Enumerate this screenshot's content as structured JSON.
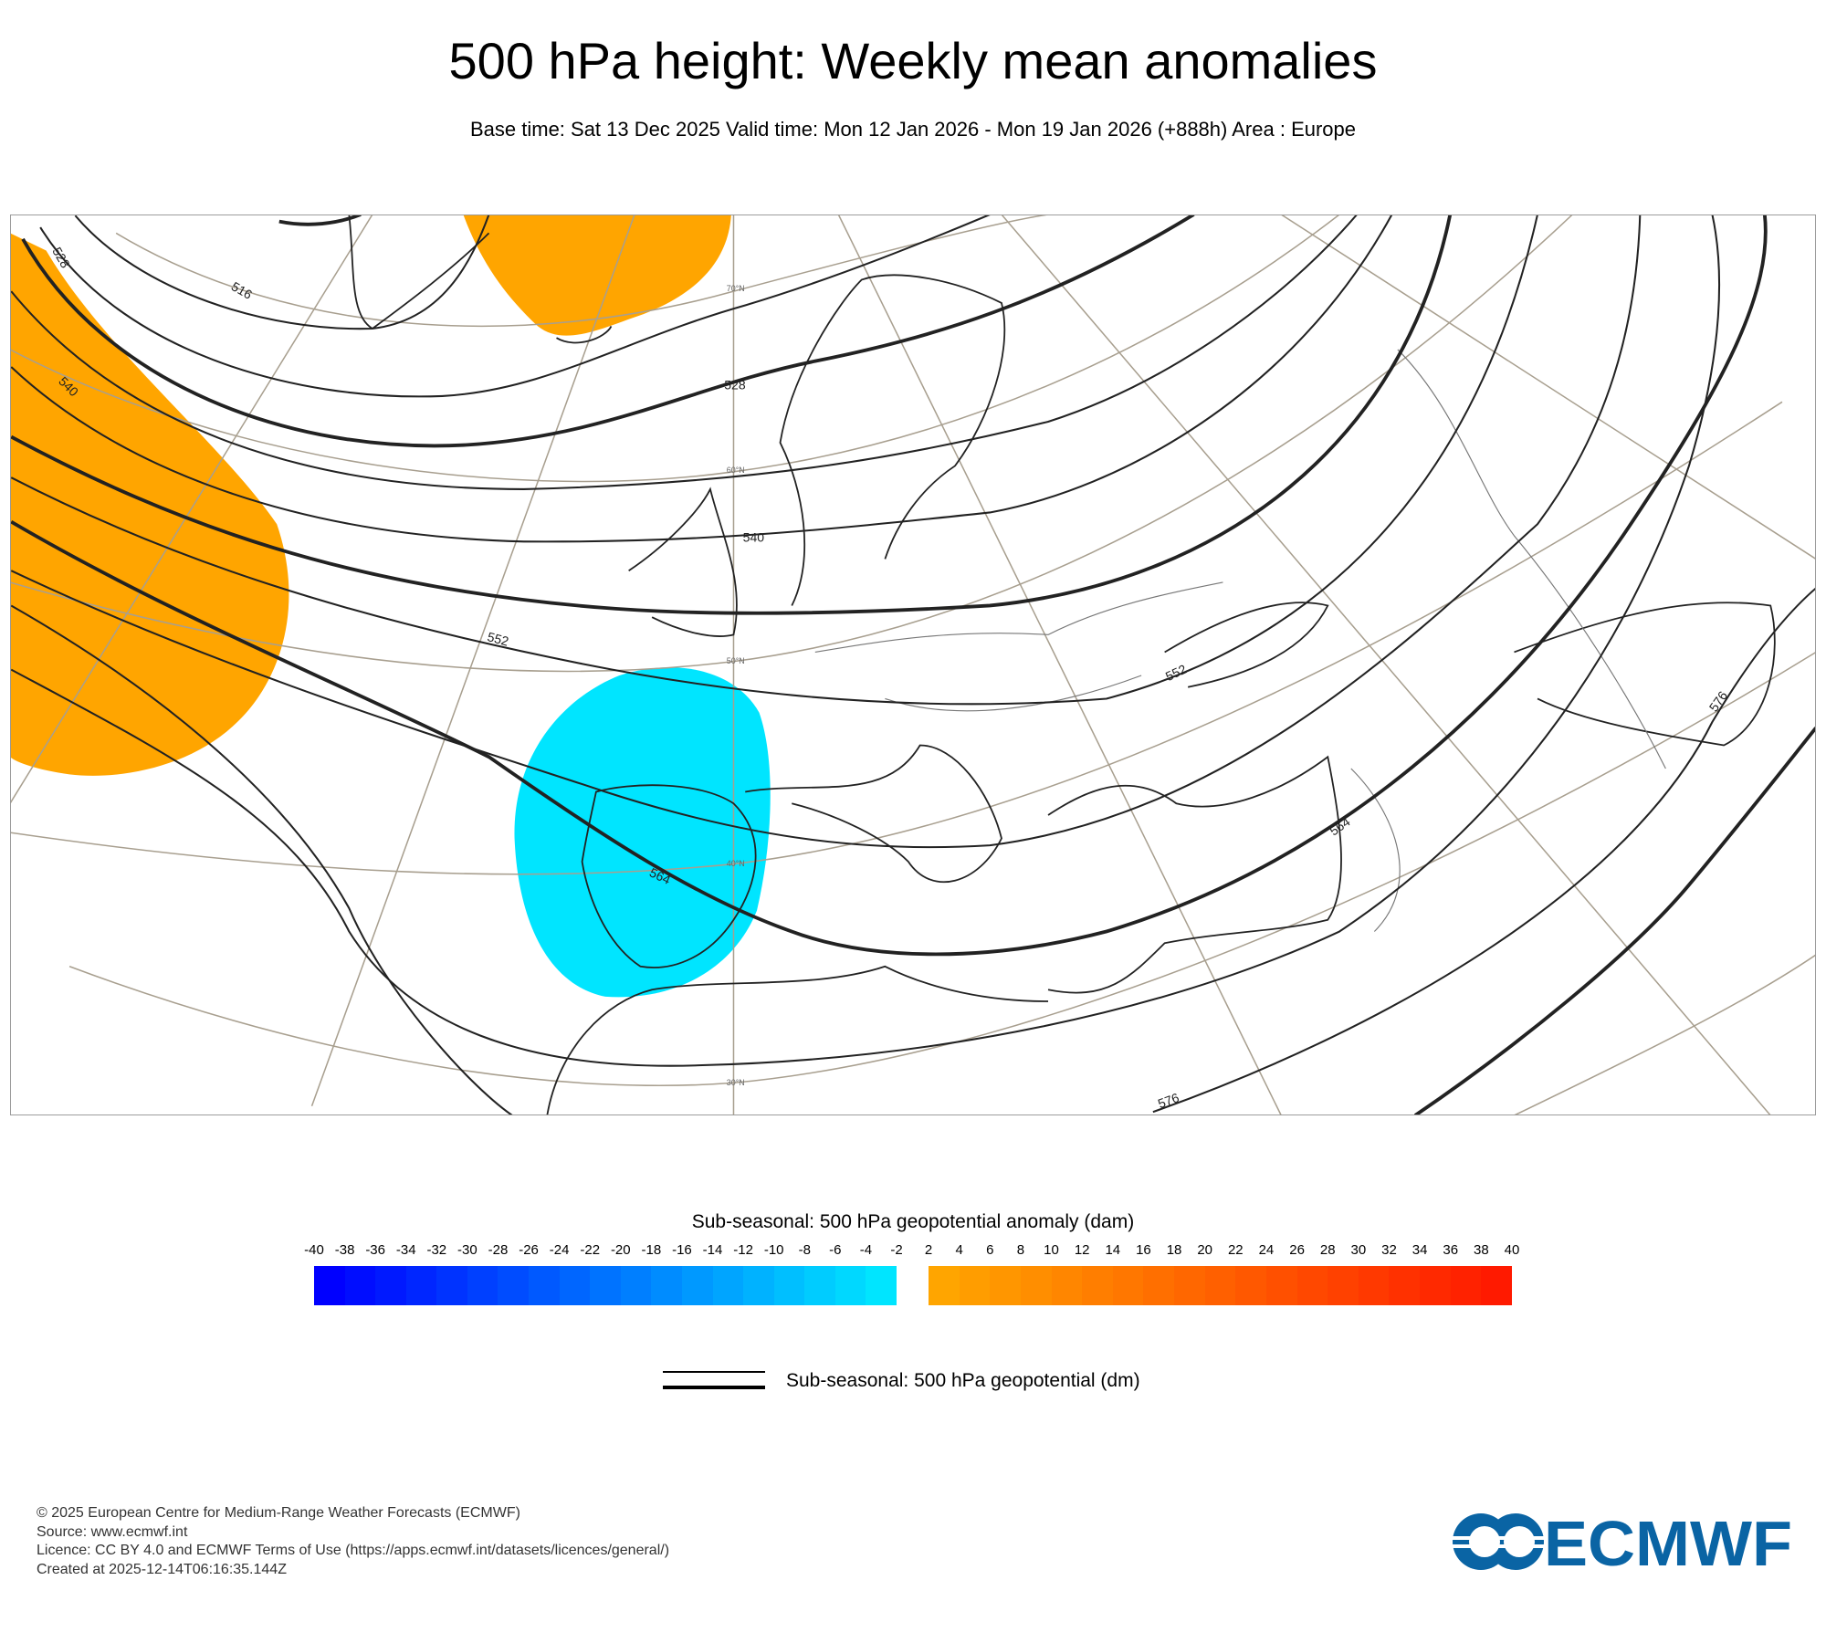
{
  "title": "500 hPa height: Weekly mean anomalies",
  "subtitle": "Base time: Sat 13 Dec 2025 Valid time: Mon 12 Jan 2026 - Mon 19 Jan 2026 (+888h) Area : Europe",
  "map": {
    "area": "Europe",
    "contour_labels": [
      "516",
      "528",
      "540",
      "540",
      "552",
      "552",
      "564",
      "564",
      "576",
      "576",
      "528"
    ],
    "latitude_labels": [
      "70°N",
      "60°N",
      "50°N",
      "40°N",
      "30°N"
    ],
    "anomaly_regions": [
      {
        "sign": "positive",
        "location": "Iceland / Norwegian Sea",
        "color": "#ffa500"
      },
      {
        "sign": "positive",
        "location": "North Atlantic west of Ireland",
        "color": "#ffa500"
      },
      {
        "sign": "negative",
        "location": "Iberia / Bay of Biscay",
        "color": "#00e5ff"
      }
    ]
  },
  "legend": {
    "shading_title": "Sub-seasonal: 500 hPa geopotential anomaly (dam)",
    "negative_ticks": [
      "-40",
      "-38",
      "-36",
      "-34",
      "-32",
      "-30",
      "-28",
      "-26",
      "-24",
      "-22",
      "-20",
      "-18",
      "-16",
      "-14",
      "-12",
      "-10",
      "-8",
      "-6",
      "-4",
      "-2"
    ],
    "positive_ticks": [
      "2",
      "4",
      "6",
      "8",
      "10",
      "12",
      "14",
      "16",
      "18",
      "20",
      "22",
      "24",
      "26",
      "28",
      "30",
      "32",
      "34",
      "36",
      "38",
      "40"
    ],
    "negative_colors": {
      "start": "#0000ff",
      "end": "#00e5ff"
    },
    "positive_colors": {
      "start": "#ffa500",
      "end": "#ff1a00"
    },
    "contour_label": "Sub-seasonal: 500 hPa geopotential (dm)"
  },
  "footer": {
    "copyright": "© 2025 European Centre for Medium-Range Weather Forecasts (ECMWF)",
    "source": "Source: www.ecmwf.int",
    "licence": "Licence: CC BY 4.0 and ECMWF Terms of Use (https://apps.ecmwf.int/datasets/licences/general/)",
    "created": "Created at 2025-12-14T06:16:35.144Z"
  },
  "logo": {
    "text": "ECMWF",
    "color": "#0a64a4"
  }
}
